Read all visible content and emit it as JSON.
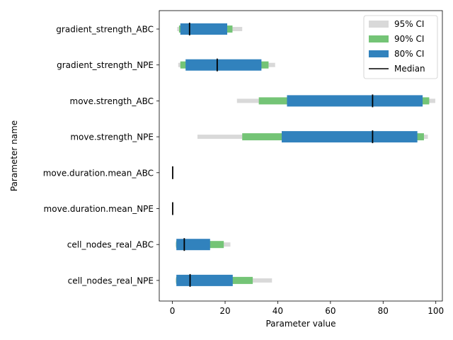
{
  "chart_data": {
    "type": "interval",
    "xlabel": "Parameter value",
    "ylabel": "Parameter name",
    "xlim": [
      -5,
      102.5
    ],
    "xticks": [
      0,
      20,
      40,
      60,
      80,
      100
    ],
    "legend_position": "top-right",
    "legend": [
      {
        "label": "95% CI",
        "kind": "patch",
        "color": "#d9d9d9"
      },
      {
        "label": "90% CI",
        "kind": "patch",
        "color": "#74c476"
      },
      {
        "label": "80% CI",
        "kind": "patch",
        "color": "#3182bd"
      },
      {
        "label": "Median",
        "kind": "line",
        "color": "#000000"
      }
    ],
    "parameters": [
      {
        "name": "gradient_strength_ABC",
        "ci95": [
          1.8,
          26.5
        ],
        "ci90": [
          2.5,
          22.8
        ],
        "ci80": [
          3.0,
          20.8
        ],
        "median": 6.5
      },
      {
        "name": "gradient_strength_NPE",
        "ci95": [
          2.2,
          39.0
        ],
        "ci90": [
          3.0,
          36.5
        ],
        "ci80": [
          5.0,
          33.8
        ],
        "median": 17.0
      },
      {
        "name": "move.strength_ABC",
        "ci95": [
          24.5,
          99.8
        ],
        "ci90": [
          32.8,
          97.5
        ],
        "ci80": [
          43.5,
          95.0
        ],
        "median": 76.0
      },
      {
        "name": "move.strength_NPE",
        "ci95": [
          9.5,
          97.0
        ],
        "ci90": [
          26.5,
          95.5
        ],
        "ci80": [
          41.5,
          93.0
        ],
        "median": 76.0
      },
      {
        "name": "move.duration.mean_ABC",
        "ci95": [
          0.0,
          0.15
        ],
        "ci90": [
          0.0,
          0.15
        ],
        "ci80": [
          0.0,
          0.15
        ],
        "median": 0.1
      },
      {
        "name": "move.duration.mean_NPE",
        "ci95": [
          0.0,
          0.15
        ],
        "ci90": [
          0.0,
          0.15
        ],
        "ci80": [
          0.0,
          0.15
        ],
        "median": 0.1
      },
      {
        "name": "cell_nodes_real_ABC",
        "ci95": [
          1.2,
          22.0
        ],
        "ci90": [
          1.4,
          19.5
        ],
        "ci80": [
          1.5,
          14.3
        ],
        "median": 4.5
      },
      {
        "name": "cell_nodes_real_NPE",
        "ci95": [
          1.2,
          37.8
        ],
        "ci90": [
          1.4,
          30.5
        ],
        "ci80": [
          1.5,
          22.9
        ],
        "median": 6.7
      }
    ]
  }
}
